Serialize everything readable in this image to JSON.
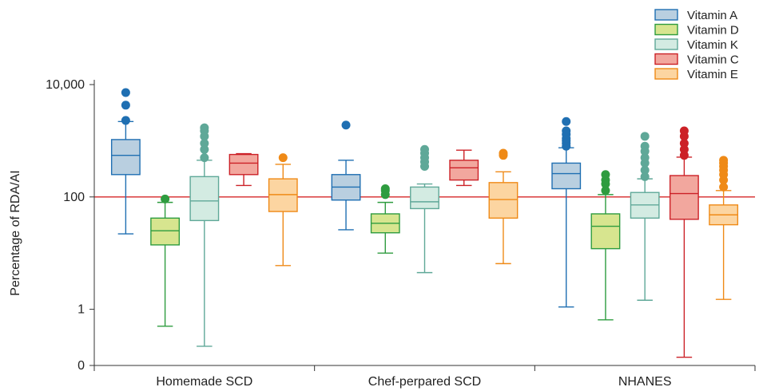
{
  "chart_data": {
    "type": "box",
    "ylabel": "Percentage of RDA/AI",
    "yscale": "log",
    "ylim": [
      0.1,
      10000
    ],
    "yticks": [
      {
        "value": 10000,
        "label": "10,000"
      },
      {
        "value": 100,
        "label": "100"
      },
      {
        "value": 1,
        "label": "1"
      },
      {
        "value": 0.1,
        "label": "0"
      }
    ],
    "reference_line": {
      "value": 100,
      "color": "#d62728"
    },
    "categories": [
      "Homemade SCD",
      "Chef-perpared SCD",
      "NHANES"
    ],
    "legend_position": "top-right",
    "series": [
      {
        "name": "Vitamin A",
        "stroke": "#1f6fb2",
        "fill": "#b9cfe0",
        "boxes": [
          {
            "whisker_low": 22,
            "q1": 250,
            "median": 550,
            "q3": 1050,
            "whisker_high": 2200,
            "outliers": [
              2300,
              4300,
              7200
            ]
          },
          {
            "whisker_low": 26,
            "q1": 88,
            "median": 150,
            "q3": 250,
            "whisker_high": 450,
            "outliers": [
              1900
            ]
          },
          {
            "whisker_low": 1.1,
            "q1": 140,
            "median": 260,
            "q3": 400,
            "whisker_high": 750,
            "outliers": [
              800,
              900,
              1000,
              1100,
              1300,
              1500,
              2200
            ]
          }
        ]
      },
      {
        "name": "Vitamin D",
        "stroke": "#2e9c3f",
        "fill": "#d7e58f",
        "boxes": [
          {
            "whisker_low": 0.5,
            "q1": 14,
            "median": 25,
            "q3": 42,
            "whisker_high": 80,
            "outliers": [
              92
            ]
          },
          {
            "whisker_low": 10,
            "q1": 23,
            "median": 34,
            "q3": 50,
            "whisker_high": 80,
            "outliers": [
              110,
              130,
              140
            ]
          },
          {
            "whisker_low": 0.65,
            "q1": 12,
            "median": 30,
            "q3": 50,
            "whisker_high": 110,
            "outliers": [
              130,
              170,
              200,
              250
            ]
          }
        ]
      },
      {
        "name": "Vitamin K",
        "stroke": "#5fa898",
        "fill": "#d3ebe2",
        "boxes": [
          {
            "whisker_low": 0.22,
            "q1": 38,
            "median": 85,
            "q3": 230,
            "whisker_high": 450,
            "outliers": [
              500,
              700,
              900,
              1200,
              1500,
              1700
            ]
          },
          {
            "whisker_low": 4.5,
            "q1": 62,
            "median": 82,
            "q3": 150,
            "whisker_high": 170,
            "outliers": [
              350,
              420,
              500,
              600,
              700
            ]
          },
          {
            "whisker_low": 1.45,
            "q1": 42,
            "median": 72,
            "q3": 120,
            "whisker_high": 210,
            "outliers": [
              230,
              300,
              400,
              500,
              650,
              800,
              1200
            ]
          }
        ]
      },
      {
        "name": "Vitamin C",
        "stroke": "#cc2127",
        "fill": "#f2a79e",
        "boxes": [
          {
            "whisker_low": 160,
            "q1": 250,
            "median": 400,
            "q3": 570,
            "whisker_high": 590,
            "outliers": []
          },
          {
            "whisker_low": 160,
            "q1": 200,
            "median": 330,
            "q3": 450,
            "whisker_high": 680,
            "outliers": []
          },
          {
            "whisker_low": 0.14,
            "q1": 40,
            "median": 115,
            "q3": 240,
            "whisker_high": 510,
            "outliers": [
              550,
              700,
              900,
              1200,
              1500
            ]
          }
        ]
      },
      {
        "name": "Vitamin E",
        "stroke": "#ef8a17",
        "fill": "#fcd5a1",
        "boxes": [
          {
            "whisker_low": 6,
            "q1": 55,
            "median": 110,
            "q3": 210,
            "whisker_high": 380,
            "outliers": [
              500
            ]
          },
          {
            "whisker_low": 6.5,
            "q1": 42,
            "median": 90,
            "q3": 180,
            "whisker_high": 280,
            "outliers": [
              550,
              600
            ]
          },
          {
            "whisker_low": 1.5,
            "q1": 32,
            "median": 48,
            "q3": 72,
            "whisker_high": 130,
            "outliers": [
              150,
              200,
              250,
              300,
              350,
              400,
              450
            ]
          }
        ]
      }
    ]
  }
}
